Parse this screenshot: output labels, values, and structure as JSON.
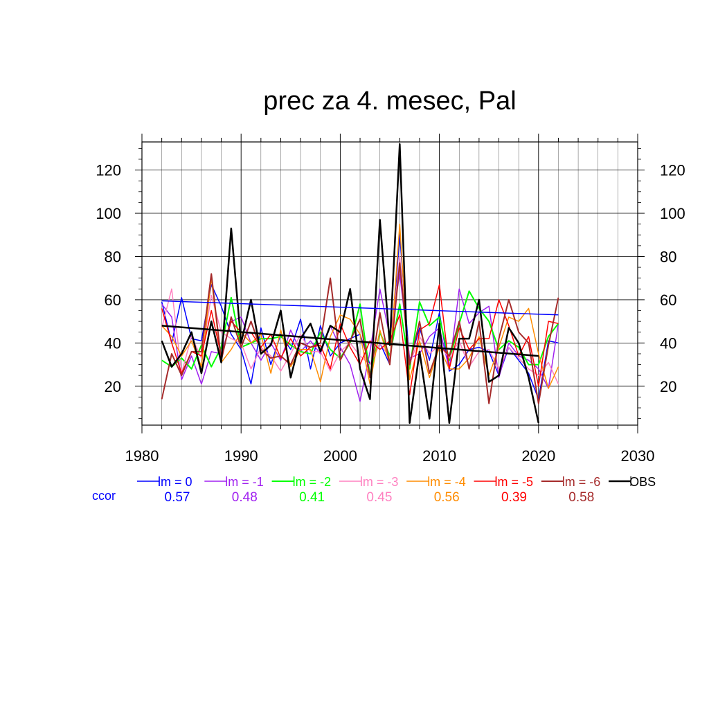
{
  "chart_data": {
    "type": "line",
    "title": "prec za 4. mesec, Pal",
    "xlabel": "",
    "ylabel": "",
    "xlim": [
      1980,
      2030
    ],
    "ylim": [
      2,
      133
    ],
    "xticks": [
      1980,
      1990,
      2000,
      2010,
      2020,
      2030
    ],
    "yticks": [
      20,
      40,
      60,
      80,
      100,
      120
    ],
    "grid": true,
    "legend_position": "bottom",
    "ccor_label": "ccor",
    "ccor_color": "#0000ff",
    "x": [
      1982,
      1983,
      1984,
      1985,
      1986,
      1987,
      1988,
      1989,
      1990,
      1991,
      1992,
      1993,
      1994,
      1995,
      1996,
      1997,
      1998,
      1999,
      2000,
      2001,
      2002,
      2003,
      2004,
      2005,
      2006,
      2007,
      2008,
      2009,
      2010,
      2011,
      2012,
      2013,
      2014,
      2015,
      2016,
      2017,
      2018,
      2019,
      2020,
      2021,
      2022
    ],
    "series": [
      {
        "name": "lm = 0",
        "ccor": "0.57",
        "color": "#0000ff",
        "width": 1.5,
        "values": [
          59,
          40,
          61,
          42,
          41,
          67,
          57,
          44,
          37,
          21,
          47,
          30,
          44,
          37,
          51,
          28,
          48,
          34,
          40,
          42,
          44,
          30,
          40,
          30,
          90,
          31,
          47,
          32,
          54,
          27,
          30,
          37,
          38,
          36,
          25,
          38,
          32,
          26,
          14,
          41,
          40
        ],
        "trend": {
          "x": [
            1982,
            2022
          ],
          "y": [
            59.5,
            53
          ]
        }
      },
      {
        "name": "lm = -1",
        "ccor": "0.48",
        "color": "#a020f0",
        "width": 1.5,
        "values": [
          58,
          52,
          23,
          34,
          21,
          36,
          35,
          50,
          52,
          40,
          32,
          40,
          32,
          46,
          36,
          41,
          35,
          48,
          38,
          30,
          13,
          36,
          65,
          43,
          72,
          33,
          35,
          43,
          47,
          28,
          65,
          49,
          54,
          57,
          24,
          40,
          34,
          32,
          28,
          19,
          49
        ]
      },
      {
        "name": "lm = -2",
        "ccor": "0.41",
        "color": "#00ff00",
        "width": 2,
        "values": [
          32,
          29,
          33,
          28,
          39,
          29,
          38,
          61,
          38,
          40,
          42,
          42,
          43,
          39,
          36,
          35,
          45,
          37,
          33,
          40,
          58,
          25,
          45,
          34,
          58,
          28,
          59,
          48,
          52,
          32,
          49,
          64,
          56,
          50,
          37,
          41,
          38,
          30,
          30,
          43,
          49
        ]
      },
      {
        "name": "lm = -3",
        "ccor": "0.45",
        "color": "#ff80c0",
        "width": 1.5,
        "values": [
          47,
          65,
          26,
          43,
          33,
          62,
          45,
          42,
          40,
          28,
          38,
          34,
          27,
          35,
          44,
          36,
          36,
          27,
          36,
          40,
          34,
          30,
          40,
          33,
          80,
          30,
          43,
          35,
          39,
          33,
          41,
          29,
          36,
          37,
          28,
          38,
          33,
          28,
          25,
          31,
          21
        ]
      },
      {
        "name": "lm = -4",
        "ccor": "0.56",
        "color": "#ff8c00",
        "width": 1.5,
        "values": [
          48,
          43,
          34,
          41,
          29,
          70,
          31,
          37,
          45,
          40,
          44,
          26,
          46,
          29,
          37,
          37,
          22,
          43,
          53,
          51,
          44,
          21,
          46,
          30,
          95,
          23,
          41,
          24,
          38,
          28,
          28,
          33,
          43,
          25,
          38,
          52,
          50,
          56,
          35,
          19,
          29
        ]
      },
      {
        "name": "lm = -5",
        "ccor": "0.39",
        "color": "#ff0000",
        "width": 1.5,
        "values": [
          56,
          40,
          26,
          36,
          34,
          55,
          34,
          50,
          45,
          45,
          38,
          44,
          33,
          42,
          34,
          38,
          39,
          28,
          49,
          38,
          30,
          41,
          37,
          41,
          53,
          16,
          46,
          49,
          67,
          28,
          47,
          37,
          42,
          42,
          60,
          48,
          34,
          43,
          20,
          50,
          49
        ]
      },
      {
        "name": "lm = -6",
        "ccor": "0.58",
        "color": "#a52a2a",
        "width": 2,
        "values": [
          14,
          35,
          25,
          36,
          36,
          72,
          32,
          52,
          38,
          50,
          37,
          33,
          34,
          30,
          40,
          38,
          40,
          70,
          32,
          41,
          51,
          24,
          54,
          30,
          77,
          30,
          50,
          26,
          39,
          34,
          50,
          28,
          50,
          12,
          42,
          60,
          45,
          40,
          12,
          39,
          61
        ]
      },
      {
        "name": "OBS",
        "ccor": "",
        "color": "#000000",
        "width": 2.5,
        "values": [
          41,
          29,
          35,
          45,
          26,
          50,
          31,
          93,
          40,
          60,
          35,
          39,
          55,
          24,
          42,
          49,
          36,
          48,
          45,
          65,
          28,
          14,
          97,
          39,
          132,
          3,
          36,
          5,
          49,
          3,
          42,
          42,
          60,
          22,
          25,
          47,
          40,
          24,
          3,
          null,
          null
        ],
        "trend": {
          "x": [
            1982,
            2020
          ],
          "y": [
            48,
            34
          ]
        }
      }
    ]
  }
}
